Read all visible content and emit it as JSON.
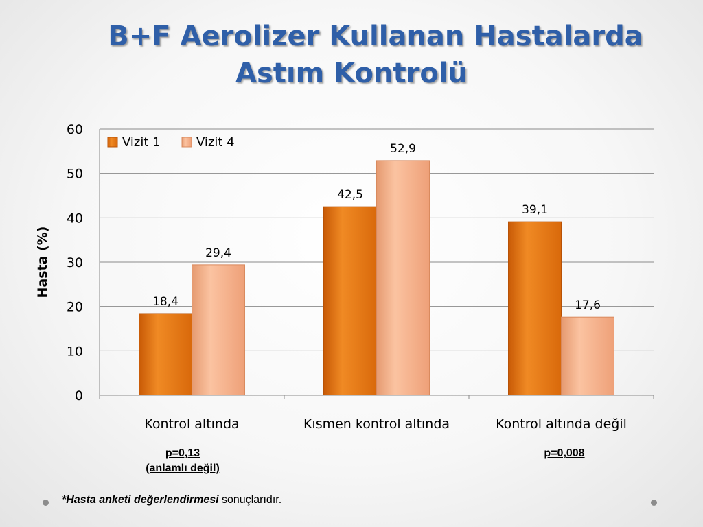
{
  "slide": {
    "title_line1": "B+F Aerolizer Kullanan Hastalarda",
    "title_line2": "Astım Kontrolü",
    "p_note_1_line1": "p=0,13",
    "p_note_1_line2": "(anlamlı değil)",
    "p_note_3": "p=0,008",
    "footnote_bold": "*Hasta anketi değerlendirmesi",
    "footnote_rest": " sonuçlarıdır."
  },
  "chart_data": {
    "type": "bar",
    "categories": [
      "Kontrol altında",
      "Kısmen kontrol altında",
      "Kontrol altında değil"
    ],
    "series": [
      {
        "name": "Vizit 1",
        "values": [
          18.4,
          42.5,
          39.1
        ],
        "labels": [
          "18,4",
          "42,5",
          "39,1"
        ],
        "color": "#e8760f"
      },
      {
        "name": "Vizit 4",
        "values": [
          29.4,
          52.9,
          17.6
        ],
        "labels": [
          "29,4",
          "52,9",
          "17,6"
        ],
        "color": "#f6ad85"
      }
    ],
    "ylabel": "Hasta (%)",
    "xlabel": "",
    "ylim": [
      0,
      60
    ],
    "yticks": [
      0,
      10,
      20,
      30,
      40,
      50,
      60
    ],
    "grid": true,
    "legend": "top-left"
  }
}
